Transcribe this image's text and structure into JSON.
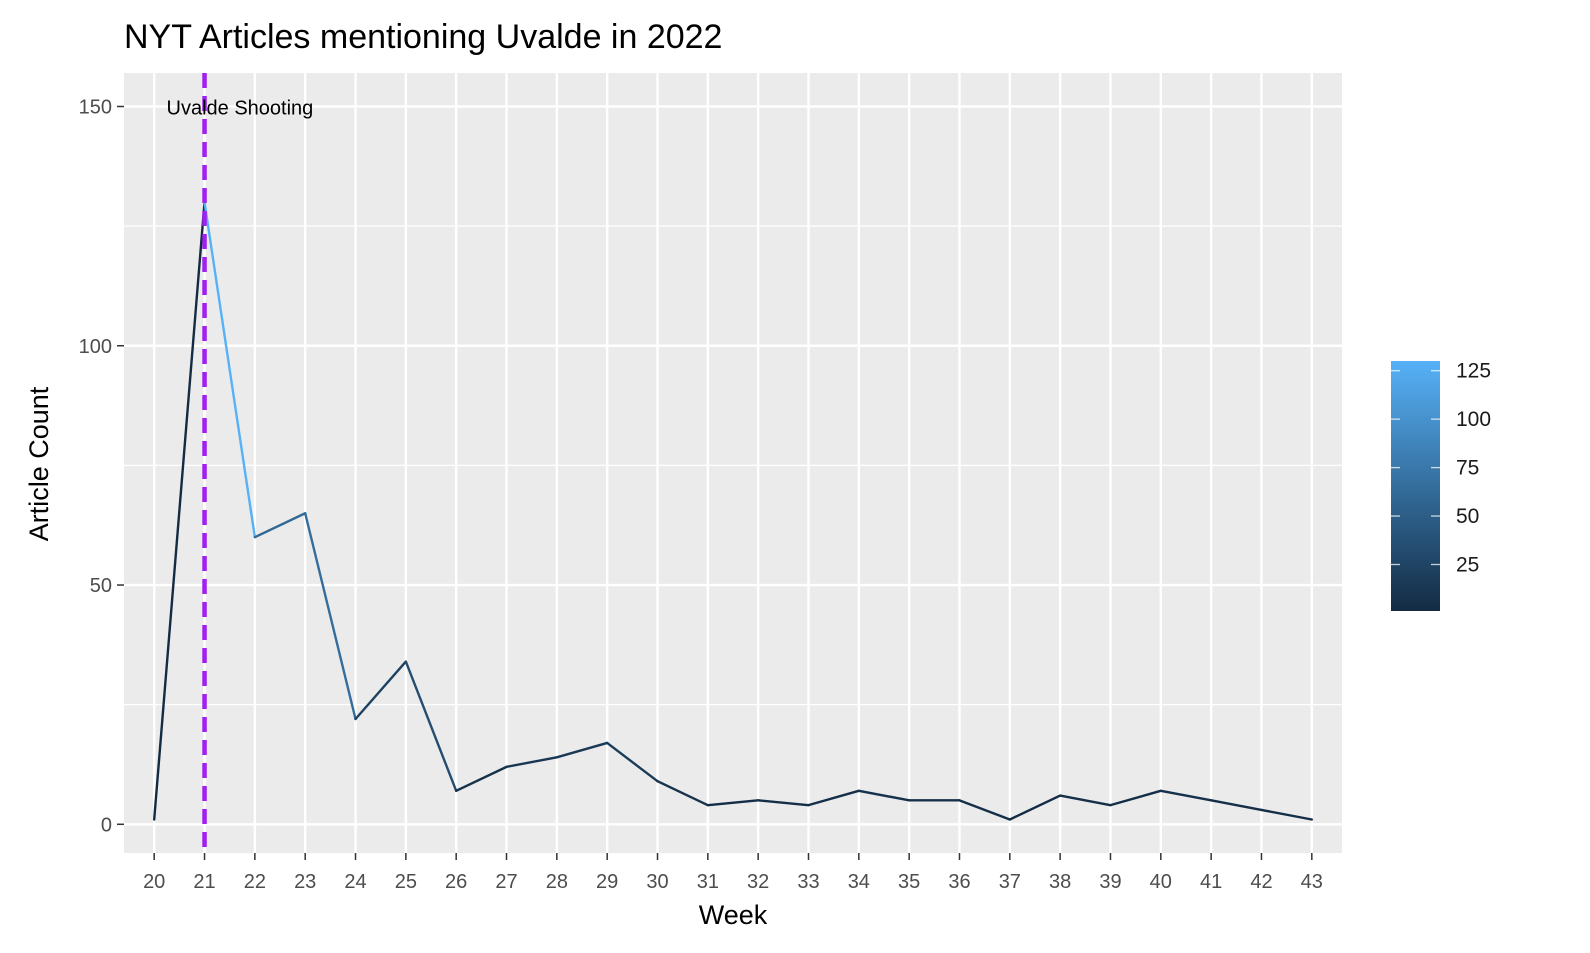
{
  "chart_data": {
    "type": "line",
    "title": "NYT Articles mentioning Uvalde in 2022",
    "xlabel": "Week",
    "ylabel": "Article Count",
    "x": [
      20,
      21,
      22,
      23,
      24,
      25,
      26,
      27,
      28,
      29,
      30,
      31,
      32,
      33,
      34,
      35,
      36,
      37,
      38,
      39,
      40,
      41,
      42,
      43
    ],
    "values": [
      1,
      130,
      60,
      65,
      22,
      34,
      7,
      12,
      14,
      17,
      9,
      4,
      5,
      4,
      7,
      5,
      5,
      1,
      6,
      4,
      7,
      5,
      3,
      1
    ],
    "xlim": [
      19.4,
      43.6
    ],
    "ylim": [
      -6,
      157
    ],
    "x_ticks": [
      20,
      21,
      22,
      23,
      24,
      25,
      26,
      27,
      28,
      29,
      30,
      31,
      32,
      33,
      34,
      35,
      36,
      37,
      38,
      39,
      40,
      41,
      42,
      43
    ],
    "y_ticks": [
      0,
      50,
      100,
      150
    ],
    "grid": true,
    "panel_background": "#ebebeb",
    "gridline_color": "#ffffff",
    "color_scale": {
      "low_color": "#132b43",
      "high_color": "#56b1f7",
      "min": 1,
      "max": 130,
      "ticks": [
        25,
        50,
        75,
        100,
        125
      ],
      "legend_position": "right"
    },
    "annotation": {
      "x": 21,
      "label": "Uvalde Shooting",
      "line_color": "#a020f0",
      "line_style": "dashed"
    }
  }
}
